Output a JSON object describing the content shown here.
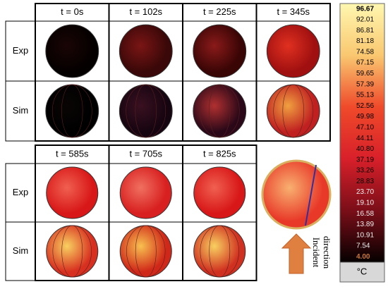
{
  "top_block": {
    "times": [
      "t = 0s",
      "t = 102s",
      "t = 225s",
      "t = 345s"
    ],
    "rows": [
      "Exp",
      "Sim"
    ]
  },
  "bottom_block": {
    "times": [
      "t = 585s",
      "t = 705s",
      "t = 825s"
    ],
    "rows": [
      "Exp",
      "Sim"
    ]
  },
  "annotation": [
    "Incident",
    "direction"
  ],
  "colorbar": {
    "labels": [
      "96.67",
      "92.01",
      "86.81",
      "81.18",
      "74.58",
      "67.15",
      "59.65",
      "57.39",
      "55.13",
      "52.56",
      "49.98",
      "47.10",
      "44.11",
      "40.80",
      "37.19",
      "33.26",
      "28.83",
      "23.70",
      "19.10",
      "16.58",
      "13.89",
      "10.91",
      "7.54",
      "4.00"
    ],
    "unit": "°C"
  }
}
